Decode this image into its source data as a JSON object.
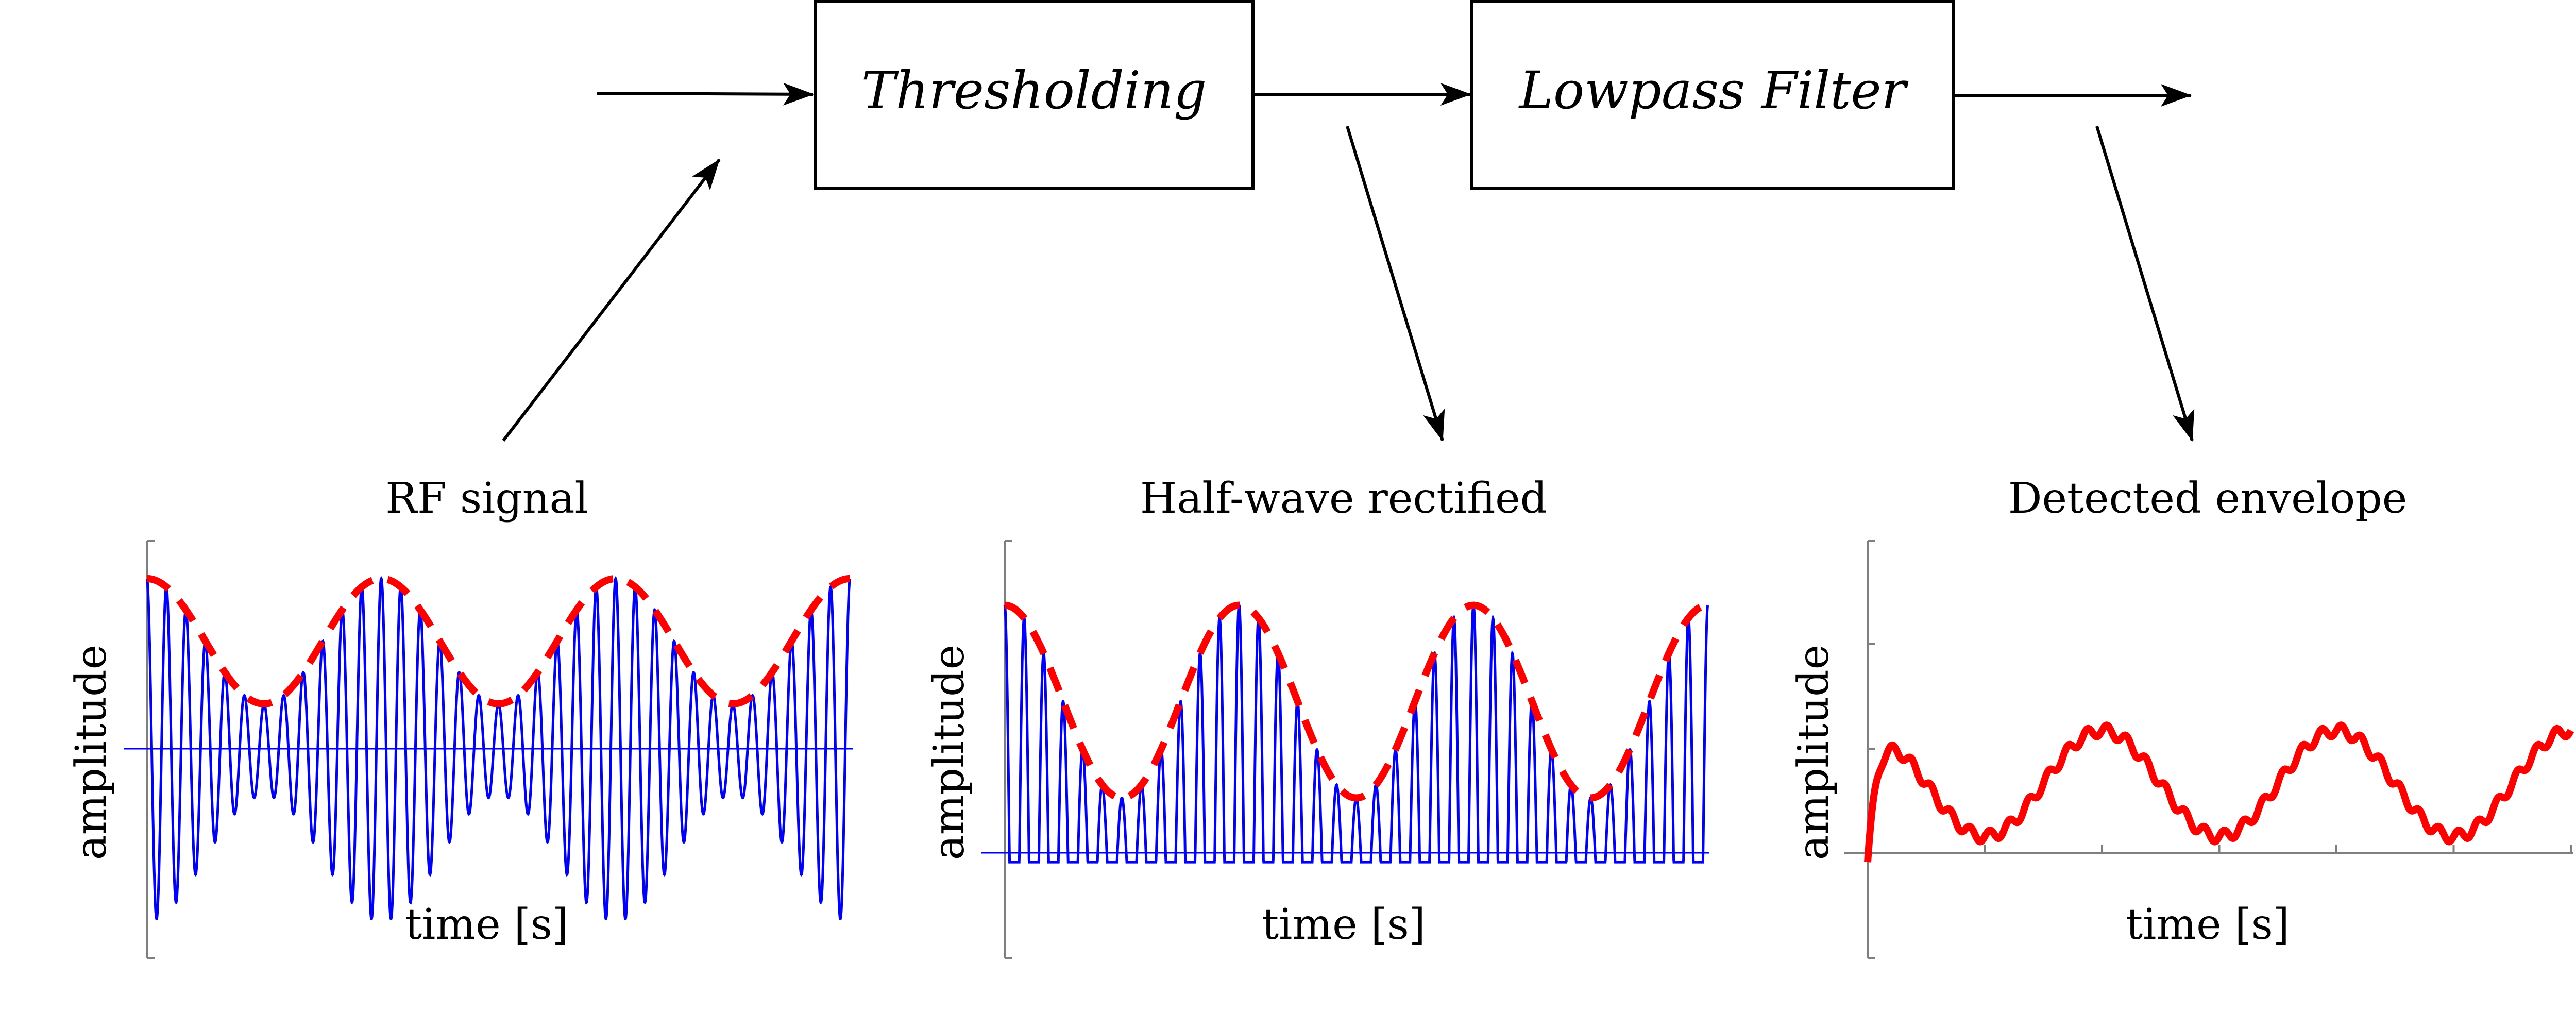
{
  "blocks": [
    {
      "id": "thresholding",
      "label": "Thresholding"
    },
    {
      "id": "lowpass",
      "label": "Lowpass Filter"
    }
  ],
  "colors": {
    "signal": "#0000ff",
    "envelope": "#ff0000",
    "line": "#000000",
    "axis": "#7f7f7f"
  },
  "chart_data": [
    {
      "type": "line",
      "title": "RF signal",
      "xlabel": "time [s]",
      "ylabel": "amplitude",
      "x_range": [
        0,
        3
      ],
      "ylim": [
        -1.0,
        1.0
      ],
      "carrier_cycles_per_envelope_period": 12,
      "envelope_periods": 3,
      "series": [
        {
          "style": "carrier",
          "color": "#0000ff"
        },
        {
          "style": "dashed-envelope",
          "color": "#ff0000",
          "range": [
            0.22,
            0.82
          ]
        }
      ]
    },
    {
      "type": "line",
      "title": "Half-wave rectified",
      "xlabel": "time [s]",
      "ylabel": "amplitude",
      "x_range": [
        0,
        3
      ],
      "ylim": [
        -0.3,
        1.0
      ],
      "carrier_cycles_per_envelope_period": 12,
      "envelope_periods": 3,
      "series": [
        {
          "style": "rectified-carrier",
          "color": "#0000ff"
        },
        {
          "style": "dashed-envelope",
          "color": "#ff0000",
          "range": [
            0.2,
            0.8
          ]
        }
      ]
    },
    {
      "type": "line",
      "title": "Detected envelope",
      "xlabel": "time [s]",
      "ylabel": "amplitude",
      "x_range": [
        0,
        3
      ],
      "ylim": [
        -0.3,
        1.0
      ],
      "envelope_periods": 3,
      "series": [
        {
          "style": "detected-envelope",
          "color": "#ff0000",
          "range": [
            0.08,
            0.41
          ]
        }
      ]
    }
  ]
}
